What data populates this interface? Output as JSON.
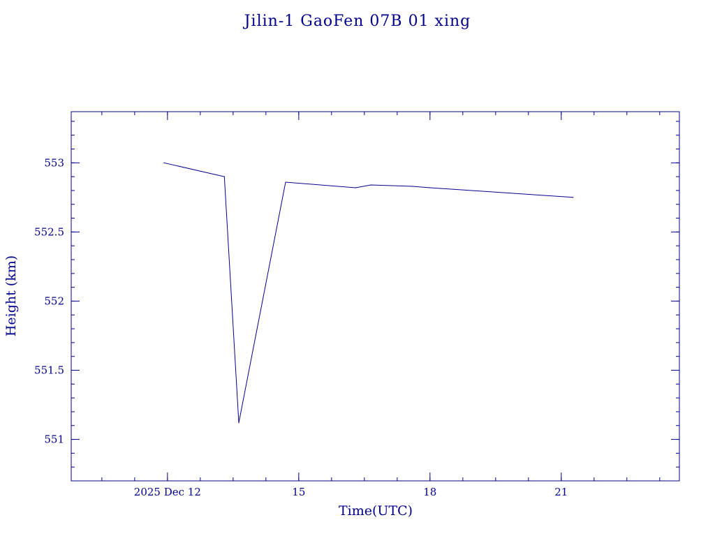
{
  "chart_data": {
    "type": "line",
    "title": "Jilin-1 GaoFen 07B 01 xing",
    "xlabel": "Time(UTC)",
    "ylabel": "Height (km)",
    "x_unit": "days (Dec 2025, UTC)",
    "xlim": [
      9.8,
      23.7
    ],
    "ylim": [
      550.7,
      553.37
    ],
    "x_ticks": [
      {
        "value": 12,
        "label": "2025 Dec 12"
      },
      {
        "value": 15,
        "label": "15"
      },
      {
        "value": 18,
        "label": "18"
      },
      {
        "value": 21,
        "label": "21"
      }
    ],
    "y_ticks": [
      {
        "value": 551,
        "label": "551"
      },
      {
        "value": 551.5,
        "label": "551.5"
      },
      {
        "value": 552,
        "label": "552"
      },
      {
        "value": 552.5,
        "label": "552.5"
      },
      {
        "value": 553,
        "label": "553"
      }
    ],
    "series": [
      {
        "color": "#00008b",
        "points": [
          {
            "x": 11.92,
            "y": 553.0
          },
          {
            "x": 13.3,
            "y": 552.9
          },
          {
            "x": 13.63,
            "y": 551.12
          },
          {
            "x": 14.7,
            "y": 552.86
          },
          {
            "x": 16.3,
            "y": 552.82
          },
          {
            "x": 16.65,
            "y": 552.84
          },
          {
            "x": 17.6,
            "y": 552.83
          },
          {
            "x": 18.0,
            "y": 552.82
          },
          {
            "x": 21.27,
            "y": 552.75
          }
        ]
      }
    ],
    "grid": false,
    "legend": "none"
  },
  "style": {
    "axis_color": "#00008b",
    "line_color": "#00008b"
  }
}
